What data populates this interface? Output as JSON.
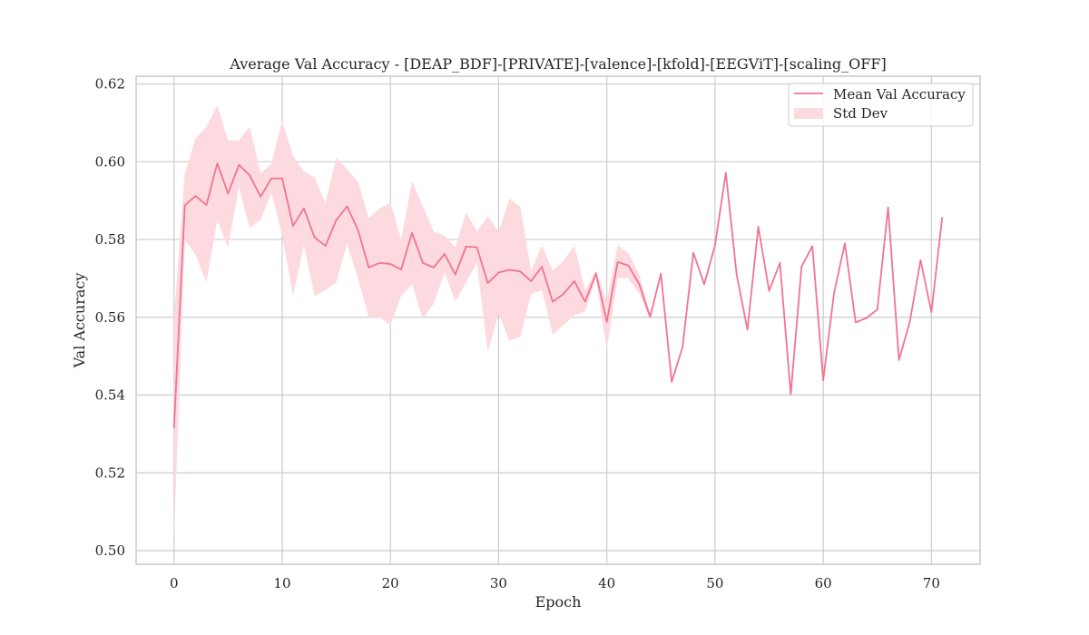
{
  "chart_data": {
    "type": "line",
    "title": "Average Val Accuracy - [DEAP_BDF]-[PRIVATE]-[valence]-[kfold]-[EEGViT]-[scaling_OFF]",
    "xlabel": "Epoch",
    "ylabel": "Val Accuracy",
    "xlim": [
      -3.5,
      74.5
    ],
    "ylim": [
      0.4965,
      0.622
    ],
    "xticks": [
      0,
      10,
      20,
      30,
      40,
      50,
      60,
      70
    ],
    "yticks": [
      0.5,
      0.52,
      0.54,
      0.56,
      0.58,
      0.6,
      0.62
    ],
    "grid": true,
    "legend_position": "top-right",
    "line_color": "#f07590",
    "band_color": "#fdd9e0",
    "series": [
      {
        "name": "Mean Val Accuracy",
        "x": [
          0,
          1,
          2,
          3,
          4,
          5,
          6,
          7,
          8,
          9,
          10,
          11,
          12,
          13,
          14,
          15,
          16,
          17,
          18,
          19,
          20,
          21,
          22,
          23,
          24,
          25,
          26,
          27,
          28,
          29,
          30,
          31,
          32,
          33,
          34,
          35,
          36,
          37,
          38,
          39,
          40,
          41,
          42,
          43,
          44,
          45,
          46,
          47,
          48,
          49,
          50,
          51,
          52,
          53,
          54,
          55,
          56,
          57,
          58,
          59,
          60,
          61,
          62,
          63,
          64,
          65,
          66,
          67,
          68,
          69,
          70,
          71
        ],
        "y": [
          0.5315,
          0.5888,
          0.5912,
          0.5889,
          0.5996,
          0.5918,
          0.5992,
          0.5965,
          0.591,
          0.5957,
          0.5957,
          0.5835,
          0.588,
          0.5805,
          0.5784,
          0.585,
          0.5885,
          0.5825,
          0.5728,
          0.574,
          0.5737,
          0.5723,
          0.5817,
          0.574,
          0.5728,
          0.5763,
          0.571,
          0.5782,
          0.578,
          0.5688,
          0.5715,
          0.5722,
          0.5718,
          0.5693,
          0.573,
          0.564,
          0.566,
          0.5693,
          0.564,
          0.5713,
          0.5588,
          0.5742,
          0.5733,
          0.5685,
          0.5601,
          0.5712,
          0.5434,
          0.5523,
          0.5766,
          0.5685,
          0.5785,
          0.5972,
          0.571,
          0.5568,
          0.5833,
          0.5668,
          0.574,
          0.5402,
          0.573,
          0.5783,
          0.5438,
          0.5662,
          0.579,
          0.5587,
          0.5598,
          0.562,
          0.5883,
          0.549,
          0.5588,
          0.5747,
          0.5613,
          0.5858
        ]
      },
      {
        "name": "Std Dev",
        "x": [
          0,
          1,
          2,
          3,
          4,
          5,
          6,
          7,
          8,
          9,
          10,
          11,
          12,
          13,
          14,
          15,
          16,
          17,
          18,
          19,
          20,
          21,
          22,
          23,
          24,
          25,
          26,
          27,
          28,
          29,
          30,
          31,
          32,
          33,
          34,
          35,
          36,
          37,
          38,
          39,
          40,
          41,
          42,
          43,
          44
        ],
        "upper": [
          0.56,
          0.597,
          0.606,
          0.609,
          0.6145,
          0.6055,
          0.6055,
          0.609,
          0.597,
          0.5995,
          0.6105,
          0.6015,
          0.5975,
          0.596,
          0.5895,
          0.601,
          0.598,
          0.595,
          0.5855,
          0.588,
          0.5895,
          0.58,
          0.595,
          0.5885,
          0.582,
          0.581,
          0.578,
          0.587,
          0.582,
          0.586,
          0.582,
          0.5905,
          0.5885,
          0.572,
          0.5785,
          0.572,
          0.5745,
          0.5785,
          0.567,
          0.572,
          0.564,
          0.5785,
          0.5765,
          0.571,
          0.561
        ],
        "lower": [
          0.503,
          0.58,
          0.576,
          0.569,
          0.585,
          0.578,
          0.5935,
          0.583,
          0.585,
          0.592,
          0.581,
          0.5655,
          0.5785,
          0.5655,
          0.567,
          0.569,
          0.579,
          0.57,
          0.56,
          0.56,
          0.558,
          0.5655,
          0.5685,
          0.5595,
          0.5635,
          0.5715,
          0.564,
          0.569,
          0.574,
          0.551,
          0.561,
          0.554,
          0.555,
          0.566,
          0.567,
          0.5555,
          0.558,
          0.5605,
          0.5615,
          0.57,
          0.5515,
          0.57,
          0.57,
          0.566,
          0.5595
        ]
      }
    ]
  }
}
